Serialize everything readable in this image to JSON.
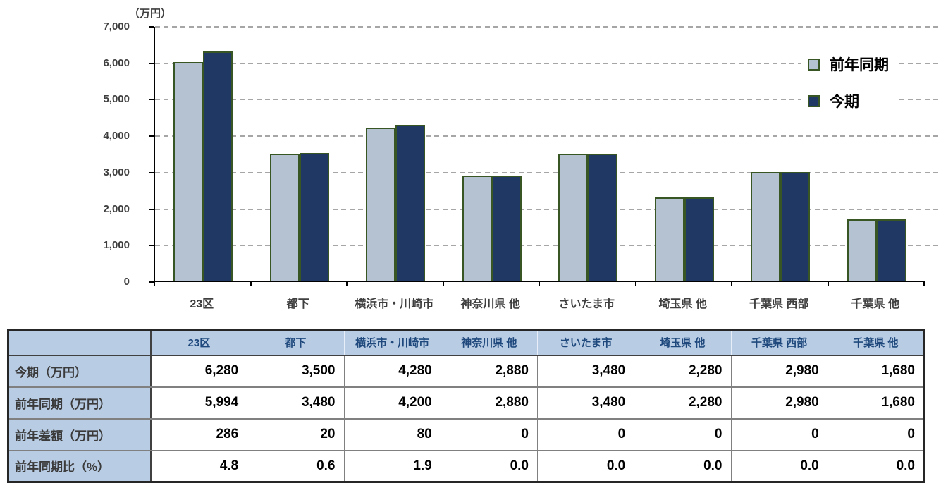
{
  "chart_data": {
    "type": "bar",
    "categories": [
      "23区",
      "都下",
      "横浜市・川崎市",
      "神奈川県 他",
      "さいたま市",
      "埼玉県 他",
      "千葉県 西部",
      "千葉県 他"
    ],
    "series": [
      {
        "name": "前年同期",
        "color": "#b4c2d2",
        "values": [
          5994,
          3480,
          4200,
          2880,
          3480,
          2280,
          2980,
          1680
        ]
      },
      {
        "name": "今期",
        "color": "#1f3864",
        "values": [
          6280,
          3500,
          4280,
          2880,
          3480,
          2280,
          2980,
          1680
        ]
      }
    ],
    "ylabel": "（万円）",
    "ylim": [
      0,
      7000
    ],
    "ytick_step": 1000,
    "grid": true,
    "legend_position": "top-right",
    "bar_border_color": "#375623",
    "gridline_color": "#a6a6a6",
    "axis_color": "#000000"
  },
  "table": {
    "corner_label": "",
    "columns": [
      "23区",
      "都下",
      "横浜市・川崎市",
      "神奈川県 他",
      "さいたま市",
      "埼玉県 他",
      "千葉県 西部",
      "千葉県 他"
    ],
    "rows": [
      {
        "label": "今期（万円）",
        "values": [
          "6,280",
          "3,500",
          "4,280",
          "2,880",
          "3,480",
          "2,280",
          "2,980",
          "1,680"
        ]
      },
      {
        "label": "前年同期（万円）",
        "values": [
          "5,994",
          "3,480",
          "4,200",
          "2,880",
          "3,480",
          "2,280",
          "2,980",
          "1,680"
        ]
      },
      {
        "label": "前年差額（万円）",
        "values": [
          "286",
          "20",
          "80",
          "0",
          "0",
          "0",
          "0",
          "0"
        ]
      },
      {
        "label": "前年同期比（%）",
        "values": [
          "4.8",
          "0.6",
          "1.9",
          "0.0",
          "0.0",
          "0.0",
          "0.0",
          "0.0"
        ]
      }
    ],
    "header_bg": "#b8cce4",
    "header_text_color": "#1f497d"
  }
}
